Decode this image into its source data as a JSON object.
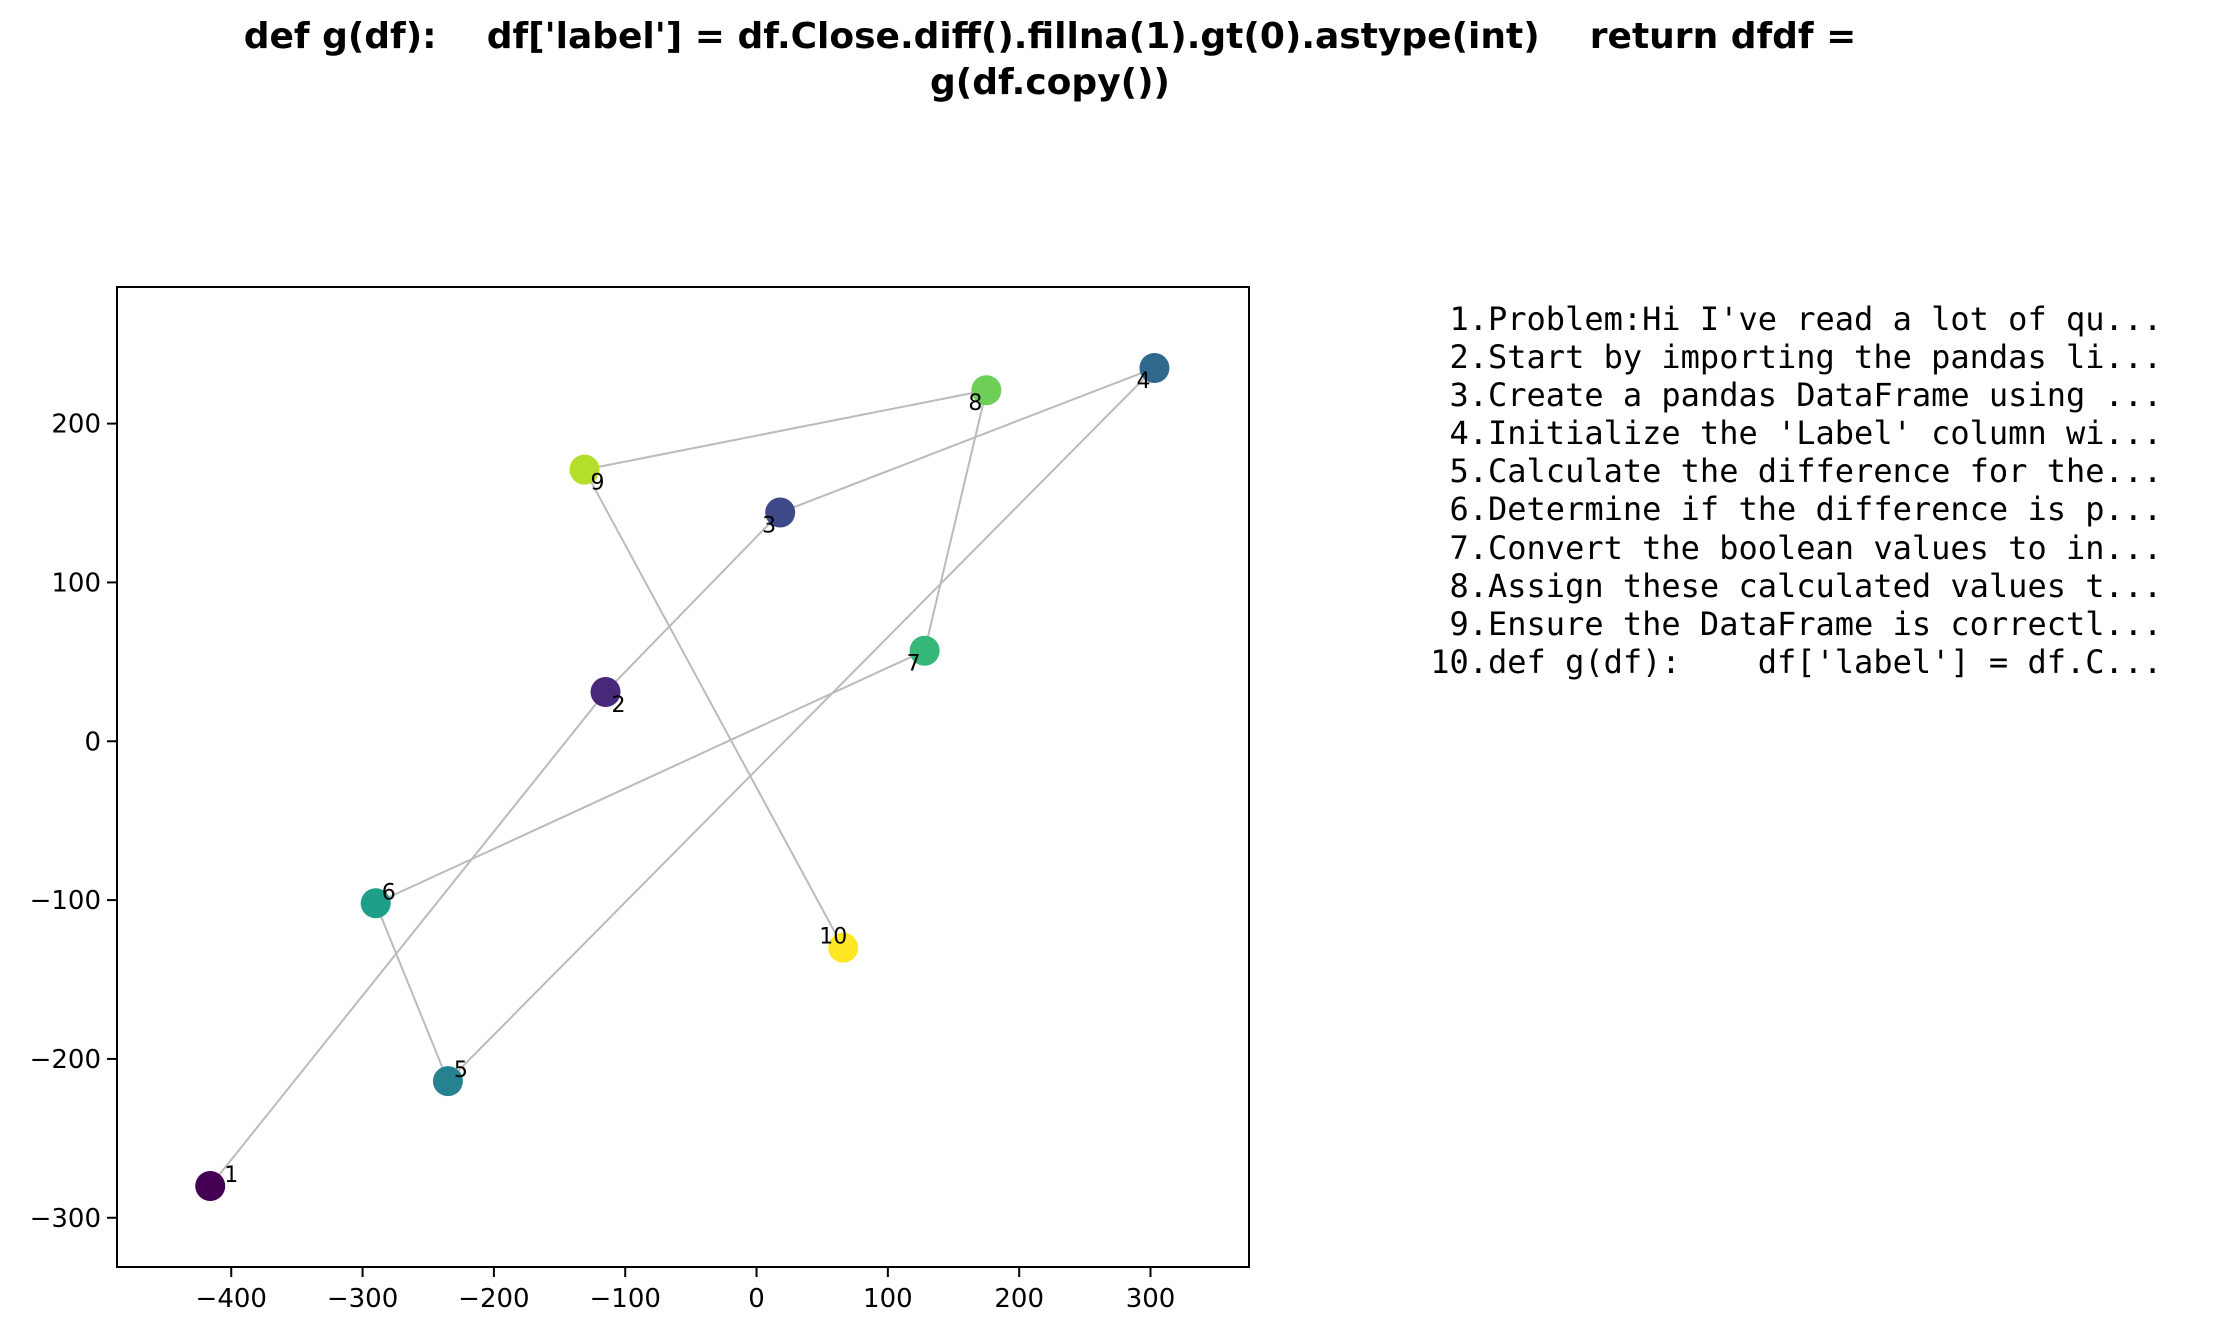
{
  "title": {
    "line1": "def g(df):    df['label'] = df.Close.diff().fillna(1).gt(0).astype(int)    return dfdf =",
    "line2": "g(df.copy())"
  },
  "steps": [
    {
      "num": "1.",
      "text": "Problem:Hi I've read a lot of qu..."
    },
    {
      "num": "2.",
      "text": "Start by importing the pandas li..."
    },
    {
      "num": "3.",
      "text": "Create a pandas DataFrame using ..."
    },
    {
      "num": "4.",
      "text": "Initialize the 'Label' column wi..."
    },
    {
      "num": "5.",
      "text": "Calculate the difference for the..."
    },
    {
      "num": "6.",
      "text": "Determine if the difference is p..."
    },
    {
      "num": "7.",
      "text": "Convert the boolean values to in..."
    },
    {
      "num": "8.",
      "text": "Assign these calculated values t..."
    },
    {
      "num": "9.",
      "text": "Ensure the DataFrame is correctl..."
    },
    {
      "num": "10.",
      "text": "def g(df):    df['label'] = df.C..."
    }
  ],
  "chart_data": {
    "type": "scatter",
    "title": "",
    "xlabel": "",
    "ylabel": "",
    "xlim": [
      -487,
      375
    ],
    "ylim": [
      -331,
      286
    ],
    "grid": false,
    "connected_in_order": true,
    "xticks": [
      -400,
      -300,
      -200,
      -100,
      0,
      100,
      200,
      300
    ],
    "yticks": [
      -300,
      -200,
      -100,
      0,
      100,
      200
    ],
    "xtick_labels": [
      "−400",
      "−300",
      "−200",
      "−100",
      "0",
      "100",
      "200",
      "300"
    ],
    "ytick_labels": [
      "−300",
      "−200",
      "−100",
      "0",
      "100",
      "200"
    ],
    "colormap": "viridis",
    "line_color": "#bbbbbb",
    "points": [
      {
        "label": "1",
        "x": -416,
        "y": -280,
        "color": "#440154"
      },
      {
        "label": "2",
        "x": -115,
        "y": 31,
        "color": "#482878"
      },
      {
        "label": "3",
        "x": 18,
        "y": 144,
        "color": "#3e4989"
      },
      {
        "label": "4",
        "x": 303,
        "y": 235,
        "color": "#31688e"
      },
      {
        "label": "5",
        "x": -235,
        "y": -214,
        "color": "#26828e"
      },
      {
        "label": "6",
        "x": -290,
        "y": -102,
        "color": "#1f9e89"
      },
      {
        "label": "7",
        "x": 128,
        "y": 57,
        "color": "#35b779"
      },
      {
        "label": "8",
        "x": 175,
        "y": 221,
        "color": "#6ece58"
      },
      {
        "label": "9",
        "x": -131,
        "y": 171,
        "color": "#b5de2b"
      },
      {
        "label": "10",
        "x": 66,
        "y": -130,
        "color": "#fde725"
      }
    ]
  }
}
